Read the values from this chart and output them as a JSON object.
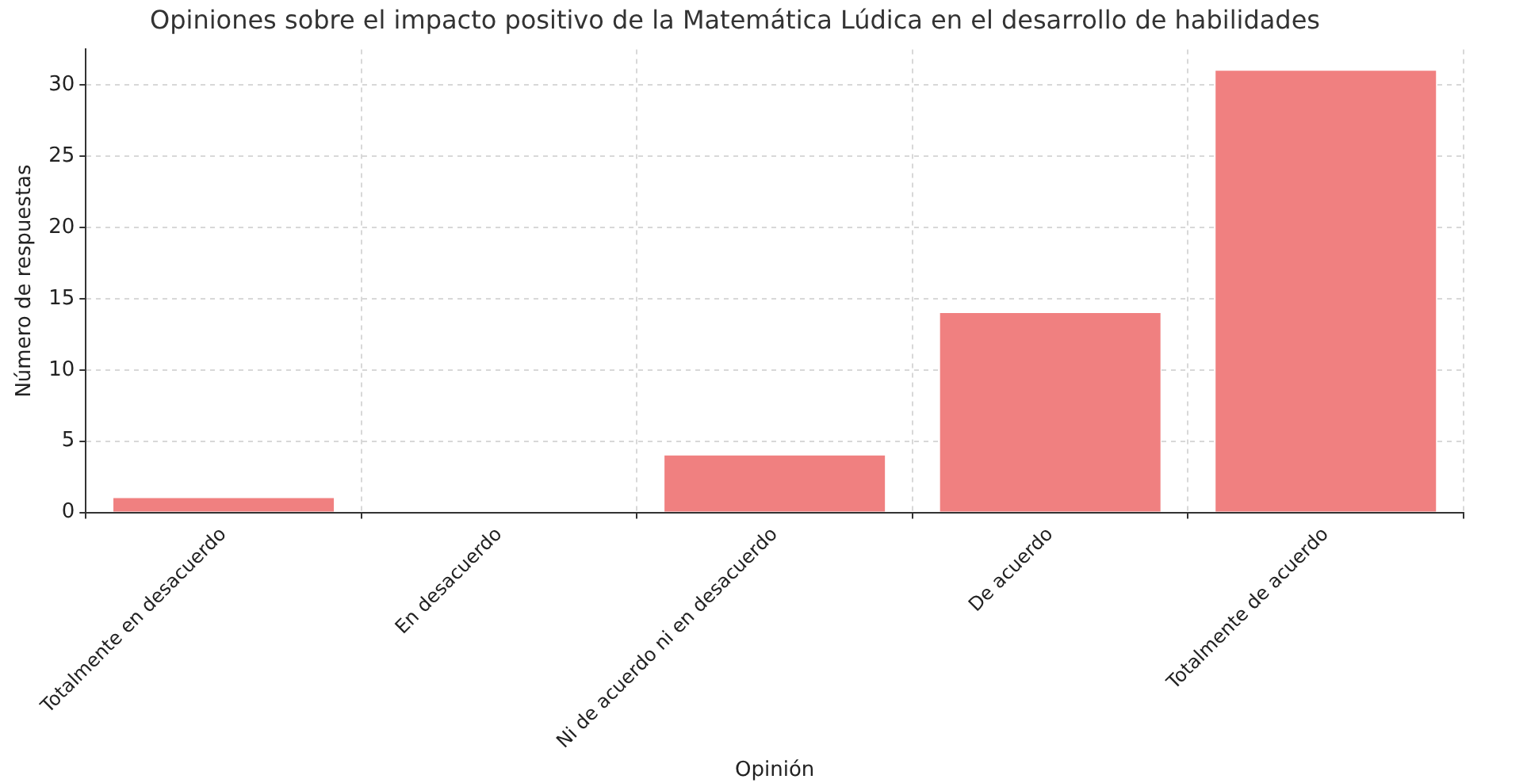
{
  "chart_data": {
    "type": "bar",
    "title": "Opiniones sobre el impacto positivo de la Matemática Lúdica en el desarrollo de habilidades",
    "xlabel": "Opinión",
    "ylabel": "Número de respuestas",
    "categories": [
      "Totalmente en desacuerdo",
      "En desacuerdo",
      "Ni de acuerdo ni en desacuerdo",
      "De acuerdo",
      "Totalmente de acuerdo"
    ],
    "values": [
      1,
      0,
      4,
      14,
      31
    ],
    "color": "#f08080",
    "ylim": [
      0,
      32.5
    ],
    "yticks": [
      0,
      5,
      10,
      15,
      20,
      25,
      30
    ],
    "grid": true
  }
}
